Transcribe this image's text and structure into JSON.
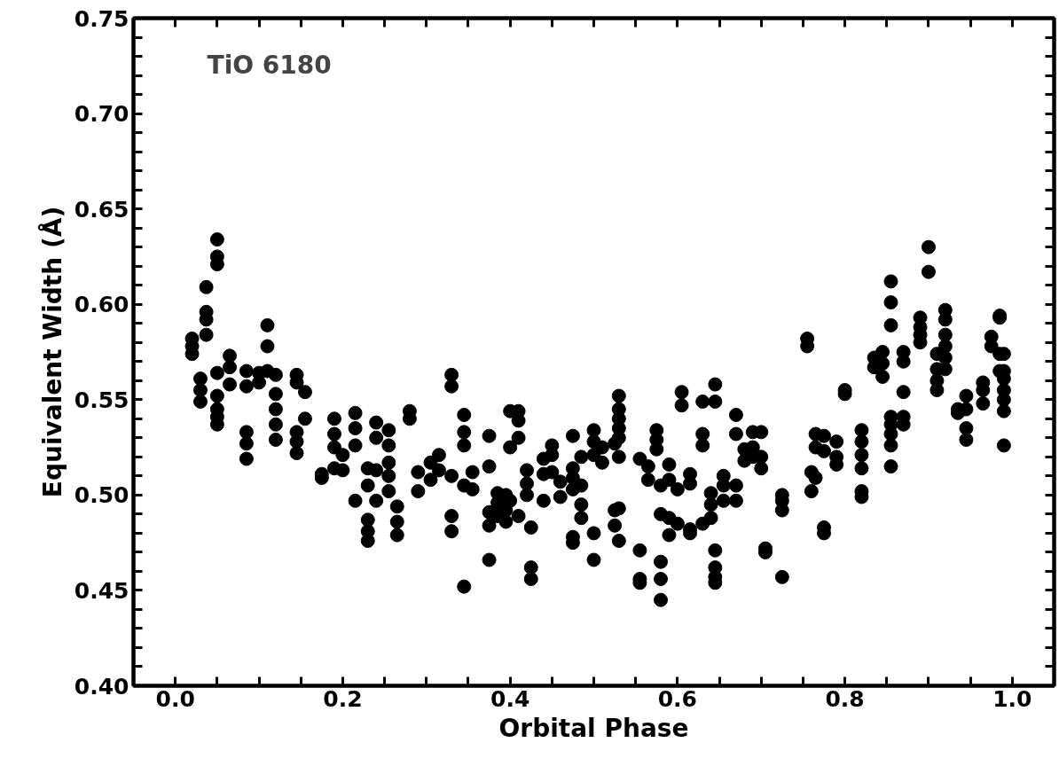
{
  "chart_data": {
    "type": "scatter",
    "xlabel": "Orbital Phase",
    "ylabel": "Equivalent Width (Å)",
    "annotations": [
      "TiO 6180"
    ],
    "marker": "circle",
    "grid": false,
    "xlim": [
      -0.05,
      1.05
    ],
    "ylim": [
      0.4,
      0.75
    ],
    "xticks": [
      "0.0",
      {
        "value": 0.05,
        "label": null
      },
      {
        "value": 0.1,
        "label": null
      },
      {
        "value": 0.15,
        "label": null
      },
      {
        "value": 0.2,
        "label": "0.2"
      },
      {
        "value": 0.25,
        "label": null
      },
      {
        "value": 0.3,
        "label": null
      },
      {
        "value": 0.35,
        "label": null
      },
      {
        "value": 0.4,
        "label": "0.4"
      },
      {
        "value": 0.45,
        "label": null
      },
      {
        "value": 0.5,
        "label": null
      },
      {
        "value": 0.55,
        "label": null
      },
      {
        "value": 0.6,
        "label": "0.6"
      },
      {
        "value": 0.65,
        "label": null
      },
      {
        "value": 0.7,
        "label": null
      },
      {
        "value": 0.75,
        "label": null
      },
      {
        "value": 0.8,
        "label": "0.8"
      },
      {
        "value": 0.85,
        "label": null
      },
      {
        "value": 0.9,
        "label": null
      },
      {
        "value": 0.95,
        "label": null
      },
      {
        "value": 1.0,
        "label": "1.0"
      }
    ],
    "yticks": [
      {
        "value": 0.4,
        "label": "0.40"
      },
      {
        "value": 0.41,
        "label": null
      },
      {
        "value": 0.42,
        "label": null
      },
      {
        "value": 0.43,
        "label": null
      },
      {
        "value": 0.44,
        "label": null
      },
      {
        "value": 0.45,
        "label": "0.45"
      },
      {
        "value": 0.46,
        "label": null
      },
      {
        "value": 0.47,
        "label": null
      },
      {
        "value": 0.48,
        "label": null
      },
      {
        "value": 0.49,
        "label": null
      },
      {
        "value": 0.5,
        "label": "0.50"
      },
      {
        "value": 0.51,
        "label": null
      },
      {
        "value": 0.52,
        "label": null
      },
      {
        "value": 0.53,
        "label": null
      },
      {
        "value": 0.54,
        "label": null
      },
      {
        "value": 0.55,
        "label": "0.55"
      },
      {
        "value": 0.56,
        "label": null
      },
      {
        "value": 0.57,
        "label": null
      },
      {
        "value": 0.58,
        "label": null
      },
      {
        "value": 0.59,
        "label": null
      },
      {
        "value": 0.6,
        "label": "0.60"
      },
      {
        "value": 0.61,
        "label": null
      },
      {
        "value": 0.62,
        "label": null
      },
      {
        "value": 0.63,
        "label": null
      },
      {
        "value": 0.64,
        "label": null
      },
      {
        "value": 0.65,
        "label": "0.65"
      },
      {
        "value": 0.66,
        "label": null
      },
      {
        "value": 0.67,
        "label": null
      },
      {
        "value": 0.68,
        "label": null
      },
      {
        "value": 0.69,
        "label": null
      },
      {
        "value": 0.7,
        "label": "0.70"
      },
      {
        "value": 0.71,
        "label": null
      },
      {
        "value": 0.72,
        "label": null
      },
      {
        "value": 0.73,
        "label": null
      },
      {
        "value": 0.74,
        "label": null
      },
      {
        "value": 0.75,
        "label": "0.75"
      }
    ],
    "series": [
      {
        "color": "#000000",
        "x": [
          0.02,
          0.02,
          0.02,
          0.03,
          0.03,
          0.03,
          0.037,
          0.037,
          0.037,
          0.037,
          0.05,
          0.05,
          0.05,
          0.05,
          0.05,
          0.05,
          0.05,
          0.05,
          0.065,
          0.065,
          0.065,
          0.085,
          0.085,
          0.085,
          0.085,
          0.085,
          0.1,
          0.1,
          0.11,
          0.11,
          0.11,
          0.12,
          0.12,
          0.12,
          0.12,
          0.12,
          0.145,
          0.145,
          0.145,
          0.145,
          0.145,
          0.155,
          0.155,
          0.175,
          0.175,
          0.19,
          0.19,
          0.19,
          0.19,
          0.2,
          0.2,
          0.215,
          0.215,
          0.215,
          0.215,
          0.23,
          0.23,
          0.23,
          0.23,
          0.23,
          0.24,
          0.24,
          0.24,
          0.24,
          0.255,
          0.255,
          0.255,
          0.255,
          0.255,
          0.265,
          0.265,
          0.265,
          0.28,
          0.28,
          0.29,
          0.29,
          0.305,
          0.305,
          0.315,
          0.315,
          0.33,
          0.33,
          0.33,
          0.33,
          0.33,
          0.345,
          0.345,
          0.345,
          0.345,
          0.345,
          0.355,
          0.355,
          0.375,
          0.375,
          0.375,
          0.375,
          0.375,
          0.385,
          0.385,
          0.385,
          0.395,
          0.395,
          0.395,
          0.4,
          0.4,
          0.4,
          0.41,
          0.41,
          0.41,
          0.41,
          0.42,
          0.42,
          0.42,
          0.425,
          0.425,
          0.425,
          0.44,
          0.44,
          0.44,
          0.45,
          0.45,
          0.45,
          0.46,
          0.46,
          0.475,
          0.475,
          0.475,
          0.475,
          0.475,
          0.475,
          0.485,
          0.485,
          0.485,
          0.485,
          0.5,
          0.5,
          0.5,
          0.5,
          0.5,
          0.51,
          0.51,
          0.525,
          0.525,
          0.525,
          0.53,
          0.53,
          0.53,
          0.53,
          0.53,
          0.53,
          0.53,
          0.53,
          0.555,
          0.555,
          0.555,
          0.555,
          0.565,
          0.565,
          0.575,
          0.575,
          0.575,
          0.58,
          0.58,
          0.58,
          0.58,
          0.58,
          0.59,
          0.59,
          0.59,
          0.59,
          0.6,
          0.6,
          0.605,
          0.605,
          0.615,
          0.615,
          0.615,
          0.615,
          0.63,
          0.63,
          0.63,
          0.63,
          0.64,
          0.64,
          0.64,
          0.645,
          0.645,
          0.645,
          0.645,
          0.645,
          0.645,
          0.655,
          0.655,
          0.655,
          0.67,
          0.67,
          0.67,
          0.67,
          0.68,
          0.68,
          0.69,
          0.69,
          0.69,
          0.7,
          0.7,
          0.7,
          0.705,
          0.705,
          0.725,
          0.725,
          0.725,
          0.725,
          0.755,
          0.755,
          0.76,
          0.76,
          0.765,
          0.765,
          0.765,
          0.775,
          0.775,
          0.775,
          0.775,
          0.79,
          0.79,
          0.79,
          0.8,
          0.8,
          0.82,
          0.82,
          0.82,
          0.82,
          0.82,
          0.82,
          0.835,
          0.835,
          0.845,
          0.845,
          0.845,
          0.855,
          0.855,
          0.855,
          0.855,
          0.855,
          0.855,
          0.855,
          0.855,
          0.87,
          0.87,
          0.87,
          0.87,
          0.87,
          0.89,
          0.89,
          0.89,
          0.89,
          0.9,
          0.9,
          0.91,
          0.91,
          0.91,
          0.91,
          0.92,
          0.92,
          0.92,
          0.92,
          0.92,
          0.92,
          0.935,
          0.935,
          0.945,
          0.945,
          0.945,
          0.945,
          0.965,
          0.965,
          0.965,
          0.975,
          0.975,
          0.985,
          0.985,
          0.985,
          0.985,
          0.99,
          0.99,
          0.99,
          0.99,
          0.99,
          0.99,
          0.99
        ],
        "values": [
          0.574,
          0.578,
          0.582,
          0.549,
          0.555,
          0.561,
          0.609,
          0.596,
          0.592,
          0.584,
          0.634,
          0.625,
          0.621,
          0.564,
          0.552,
          0.545,
          0.541,
          0.537,
          0.573,
          0.567,
          0.558,
          0.565,
          0.557,
          0.533,
          0.527,
          0.519,
          0.564,
          0.559,
          0.589,
          0.578,
          0.565,
          0.563,
          0.553,
          0.545,
          0.537,
          0.529,
          0.563,
          0.559,
          0.533,
          0.528,
          0.522,
          0.554,
          0.54,
          0.511,
          0.509,
          0.54,
          0.532,
          0.525,
          0.514,
          0.521,
          0.513,
          0.543,
          0.535,
          0.526,
          0.497,
          0.514,
          0.505,
          0.487,
          0.481,
          0.476,
          0.538,
          0.53,
          0.513,
          0.497,
          0.534,
          0.526,
          0.517,
          0.51,
          0.502,
          0.494,
          0.486,
          0.479,
          0.544,
          0.54,
          0.512,
          0.502,
          0.517,
          0.508,
          0.521,
          0.513,
          0.563,
          0.557,
          0.51,
          0.489,
          0.481,
          0.542,
          0.533,
          0.526,
          0.505,
          0.452,
          0.512,
          0.503,
          0.531,
          0.515,
          0.491,
          0.484,
          0.466,
          0.501,
          0.496,
          0.489,
          0.5,
          0.492,
          0.486,
          0.544,
          0.525,
          0.497,
          0.544,
          0.539,
          0.53,
          0.489,
          0.513,
          0.506,
          0.5,
          0.483,
          0.462,
          0.456,
          0.519,
          0.511,
          0.497,
          0.526,
          0.521,
          0.512,
          0.507,
          0.499,
          0.531,
          0.514,
          0.509,
          0.503,
          0.478,
          0.475,
          0.52,
          0.505,
          0.495,
          0.488,
          0.534,
          0.528,
          0.521,
          0.48,
          0.466,
          0.525,
          0.517,
          0.527,
          0.492,
          0.484,
          0.552,
          0.545,
          0.54,
          0.535,
          0.53,
          0.52,
          0.493,
          0.476,
          0.519,
          0.471,
          0.456,
          0.454,
          0.515,
          0.508,
          0.534,
          0.529,
          0.524,
          0.505,
          0.49,
          0.465,
          0.456,
          0.445,
          0.516,
          0.508,
          0.488,
          0.479,
          0.503,
          0.485,
          0.554,
          0.547,
          0.511,
          0.506,
          0.482,
          0.48,
          0.532,
          0.526,
          0.549,
          0.485,
          0.501,
          0.495,
          0.488,
          0.558,
          0.549,
          0.471,
          0.462,
          0.457,
          0.454,
          0.51,
          0.505,
          0.497,
          0.542,
          0.532,
          0.505,
          0.497,
          0.524,
          0.518,
          0.533,
          0.525,
          0.52,
          0.533,
          0.52,
          0.514,
          0.472,
          0.47,
          0.5,
          0.497,
          0.492,
          0.457,
          0.582,
          0.578,
          0.512,
          0.502,
          0.532,
          0.525,
          0.509,
          0.531,
          0.523,
          0.483,
          0.48,
          0.528,
          0.52,
          0.516,
          0.555,
          0.553,
          0.534,
          0.528,
          0.521,
          0.514,
          0.502,
          0.499,
          0.572,
          0.567,
          0.575,
          0.569,
          0.562,
          0.612,
          0.601,
          0.589,
          0.541,
          0.537,
          0.532,
          0.526,
          0.515,
          0.575,
          0.57,
          0.554,
          0.541,
          0.537,
          0.593,
          0.588,
          0.584,
          0.58,
          0.63,
          0.617,
          0.574,
          0.566,
          0.56,
          0.555,
          0.597,
          0.592,
          0.584,
          0.578,
          0.572,
          0.566,
          0.545,
          0.543,
          0.552,
          0.545,
          0.535,
          0.529,
          0.559,
          0.555,
          0.548,
          0.583,
          0.578,
          0.594,
          0.593,
          0.574,
          0.565,
          0.574,
          0.565,
          0.561,
          0.555,
          0.55,
          0.544,
          0.526
        ]
      }
    ]
  }
}
